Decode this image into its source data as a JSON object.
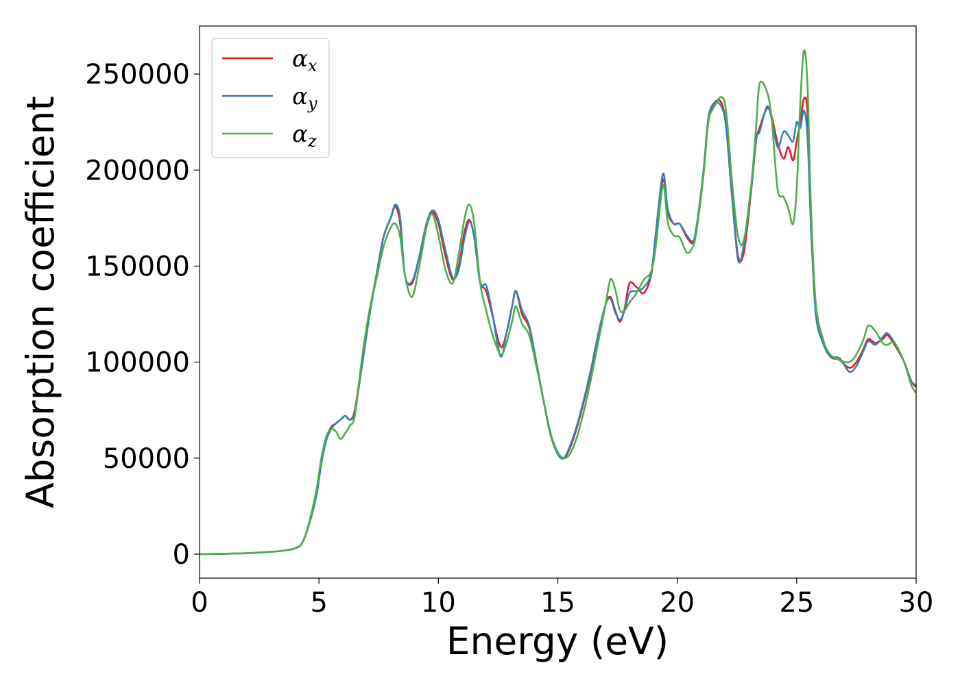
{
  "chart_data": {
    "type": "line",
    "xlabel": "Energy (eV)",
    "ylabel": "Absorption coefficient",
    "xlim": [
      0,
      30
    ],
    "ylim": [
      -12500,
      275000
    ],
    "x_ticks": [
      0,
      5,
      10,
      15,
      20,
      25,
      30
    ],
    "y_ticks": [
      0,
      50000,
      100000,
      150000,
      200000,
      250000
    ],
    "grid": false,
    "legend_position": "top-left",
    "x": [
      0,
      1,
      2,
      3,
      3.5,
      4,
      4.3,
      4.6,
      4.9,
      5.1,
      5.3,
      5.5,
      5.7,
      5.9,
      6.1,
      6.3,
      6.5,
      6.8,
      7.1,
      7.4,
      7.7,
      8.0,
      8.2,
      8.4,
      8.6,
      8.9,
      9.2,
      9.5,
      9.75,
      10.0,
      10.3,
      10.6,
      10.85,
      11.1,
      11.3,
      11.5,
      11.75,
      12.0,
      12.25,
      12.6,
      12.85,
      13.1,
      13.25,
      13.5,
      13.8,
      14.1,
      14.4,
      14.7,
      15.0,
      15.25,
      15.5,
      15.8,
      16.1,
      16.4,
      16.7,
      17.0,
      17.2,
      17.4,
      17.6,
      17.8,
      18.0,
      18.3,
      18.6,
      18.9,
      19.1,
      19.4,
      19.6,
      19.85,
      20.1,
      20.4,
      20.65,
      20.8,
      21.1,
      21.3,
      21.55,
      21.85,
      22.05,
      22.3,
      22.55,
      22.8,
      23.1,
      23.3,
      23.45,
      23.75,
      23.95,
      24.2,
      24.45,
      24.65,
      24.85,
      25.0,
      25.15,
      25.3,
      25.45,
      25.6,
      25.8,
      26.1,
      26.4,
      26.8,
      27.2,
      27.5,
      27.8,
      28.0,
      28.3,
      28.6,
      28.8,
      29.1,
      29.5,
      29.8,
      30.0
    ],
    "series": [
      {
        "name": "α_x",
        "color": "#e41a1c",
        "values": [
          0,
          200,
          500,
          1200,
          1800,
          3000,
          6000,
          16000,
          32000,
          48000,
          60000,
          66000,
          68000,
          70000,
          72000,
          70000,
          75000,
          100000,
          125000,
          145000,
          165000,
          175000,
          181000,
          172000,
          145000,
          141000,
          155000,
          172000,
          178000,
          172000,
          155000,
          143000,
          150000,
          168000,
          174000,
          165000,
          142000,
          137000,
          125000,
          108000,
          115000,
          130000,
          137000,
          125000,
          118000,
          100000,
          80000,
          62000,
          53000,
          50000,
          55000,
          66000,
          80000,
          96000,
          115000,
          130000,
          134000,
          127000,
          121000,
          128000,
          141000,
          139000,
          136000,
          145000,
          165000,
          195000,
          178000,
          172000,
          172000,
          165000,
          162000,
          168000,
          198000,
          225000,
          235000,
          235000,
          222000,
          185000,
          155000,
          158000,
          190000,
          215000,
          222000,
          232000,
          228000,
          214000,
          206000,
          212000,
          205000,
          215000,
          225000,
          237000,
          230000,
          175000,
          130000,
          112000,
          103000,
          101000,
          97000,
          100000,
          107000,
          112000,
          110000,
          112000,
          114000,
          109000,
          100000,
          90000,
          87000
        ]
      },
      {
        "name": "α_y",
        "color": "#377eb8",
        "values": [
          0,
          200,
          500,
          1200,
          1800,
          3000,
          6000,
          16000,
          31000,
          47000,
          59000,
          65000,
          68000,
          70000,
          72000,
          70000,
          74000,
          98000,
          123000,
          145000,
          165000,
          175000,
          182000,
          175000,
          145000,
          142000,
          155000,
          172000,
          179000,
          174000,
          158000,
          144000,
          148000,
          165000,
          173000,
          165000,
          141000,
          140000,
          126000,
          103000,
          115000,
          130000,
          137000,
          127000,
          119000,
          100000,
          80000,
          62000,
          52000,
          50000,
          56000,
          67000,
          81000,
          97000,
          115000,
          130000,
          133000,
          126000,
          122000,
          127000,
          136000,
          137000,
          139000,
          146000,
          167000,
          198000,
          180000,
          172000,
          172000,
          166000,
          163000,
          170000,
          200000,
          227000,
          235000,
          233000,
          222000,
          186000,
          153000,
          162000,
          191000,
          216000,
          220000,
          233000,
          227000,
          212000,
          220000,
          218000,
          215000,
          225000,
          222000,
          231000,
          218000,
          170000,
          125000,
          110000,
          103000,
          102000,
          95000,
          98000,
          106000,
          111000,
          109000,
          113000,
          115000,
          110000,
          100000,
          90000,
          88000
        ]
      },
      {
        "name": "α_z",
        "color": "#4daf4a",
        "values": [
          0,
          200,
          500,
          1200,
          1800,
          3000,
          6000,
          17000,
          34000,
          50000,
          61000,
          65000,
          64000,
          60000,
          63000,
          67000,
          72000,
          102000,
          126000,
          143000,
          160000,
          170000,
          172000,
          165000,
          145000,
          134000,
          150000,
          170000,
          177000,
          166000,
          148000,
          141000,
          156000,
          175000,
          182000,
          172000,
          141000,
          127000,
          115000,
          104000,
          110000,
          122000,
          129000,
          120000,
          114000,
          98000,
          80000,
          63000,
          53000,
          50000,
          52000,
          61000,
          75000,
          92000,
          111000,
          130000,
          143000,
          138000,
          127000,
          127000,
          131000,
          136000,
          143000,
          147000,
          160000,
          192000,
          173000,
          166000,
          165000,
          157000,
          160000,
          168000,
          198000,
          225000,
          233000,
          238000,
          230000,
          193000,
          165000,
          164000,
          193000,
          222000,
          245000,
          241000,
          227000,
          190000,
          186000,
          180000,
          172000,
          190000,
          235000,
          262000,
          245000,
          180000,
          130000,
          112000,
          104000,
          101000,
          100000,
          104000,
          112000,
          119000,
          116000,
          110000,
          109000,
          110000,
          100000,
          88000,
          84000
        ]
      }
    ]
  },
  "legend": {
    "entries": [
      {
        "base": "α",
        "sub": "x"
      },
      {
        "base": "α",
        "sub": "y"
      },
      {
        "base": "α",
        "sub": "z"
      }
    ]
  }
}
